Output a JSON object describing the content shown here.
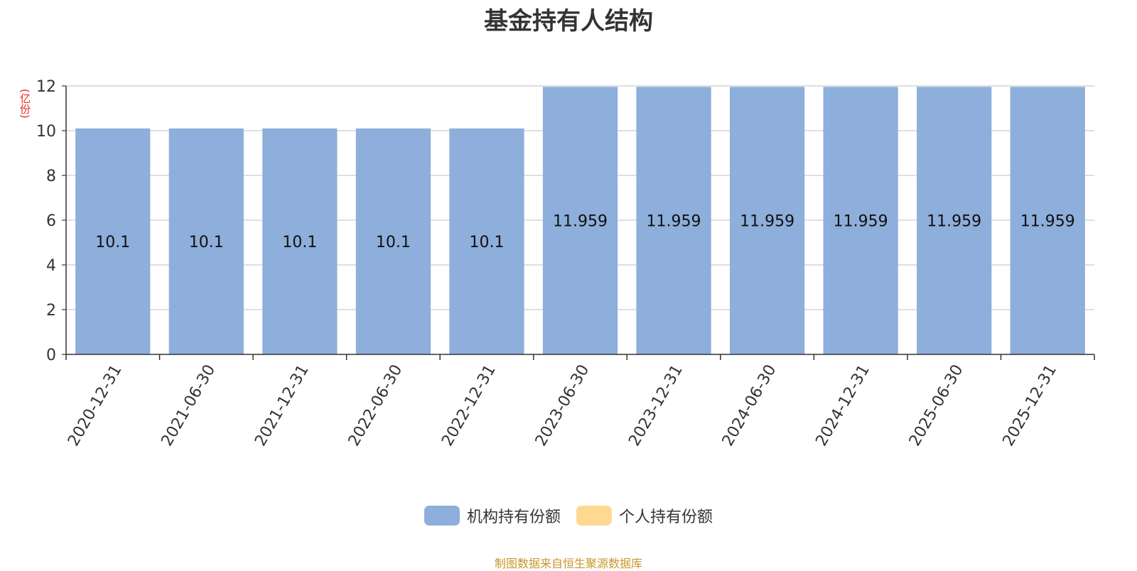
{
  "chart_data": {
    "type": "bar",
    "title": "基金持有人结构",
    "ylabel": "亿份",
    "ylabel_display": "(亿份)",
    "ylim": [
      0,
      12
    ],
    "yticks": [
      0,
      2,
      4,
      6,
      8,
      10,
      12
    ],
    "grid": true,
    "categories": [
      "2020-12-31",
      "2021-06-30",
      "2021-12-31",
      "2022-06-30",
      "2022-12-31",
      "2023-06-30",
      "2023-12-31",
      "2024-06-30",
      "2024-12-31",
      "2025-06-30",
      "2025-12-31"
    ],
    "series": [
      {
        "name": "机构持有份额",
        "color": "#8eaedb",
        "values": [
          10.1,
          10.1,
          10.1,
          10.1,
          10.1,
          11.959,
          11.959,
          11.959,
          11.959,
          11.959,
          11.959
        ]
      },
      {
        "name": "个人持有份额",
        "color": "#ffd992",
        "values": [
          0,
          0,
          0,
          0,
          0,
          0,
          0,
          0,
          0,
          0,
          0
        ]
      }
    ],
    "legend_position": "bottom-center",
    "source": "制图数据来自恒生聚源数据库"
  }
}
